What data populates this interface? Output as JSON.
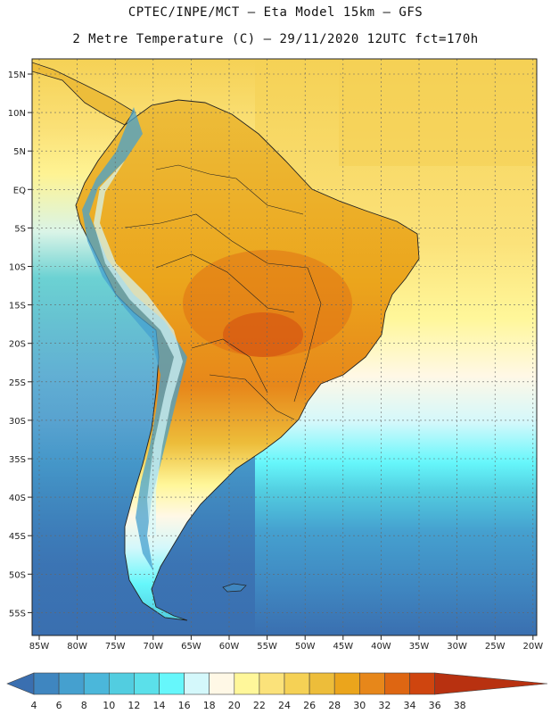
{
  "header": {
    "line1": "CPTEC/INPE/MCT –  Eta Model 15km – GFS",
    "line2": "2 Metre Temperature (C) – 29/11/2020 12UTC fct=170h"
  },
  "map": {
    "lat_labels": [
      "15N",
      "10N",
      "5N",
      "EQ",
      "5S",
      "10S",
      "15S",
      "20S",
      "25S",
      "30S",
      "35S",
      "40S",
      "45S",
      "50S",
      "55S"
    ],
    "lon_labels": [
      "85W",
      "80W",
      "75W",
      "70W",
      "65W",
      "60W",
      "55W",
      "50W",
      "45W",
      "40W",
      "35W",
      "30W",
      "25W",
      "20W"
    ]
  },
  "colorbar": {
    "ticks": [
      "4",
      "6",
      "8",
      "10",
      "12",
      "14",
      "16",
      "18",
      "20",
      "22",
      "24",
      "26",
      "28",
      "30",
      "32",
      "34",
      "36",
      "38"
    ],
    "colors": [
      "#3a6fb0",
      "#3f86c0",
      "#45a0cf",
      "#4bb7da",
      "#52cde0",
      "#5be0ea",
      "#66f7fb",
      "#d4f8fb",
      "#fff8e6",
      "#fff79a",
      "#fbe27a",
      "#f5d155",
      "#edbd3a",
      "#eba51c",
      "#e7871a",
      "#de6612",
      "#cf450f",
      "#b83110"
    ]
  }
}
